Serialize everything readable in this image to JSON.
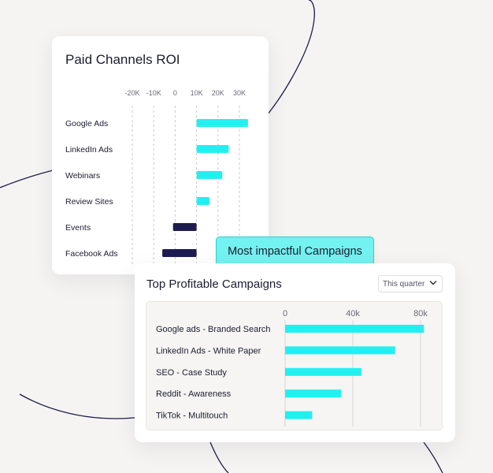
{
  "colors": {
    "positive": "#22f0f0",
    "negative": "#1d1b4f",
    "line": "#1d1b4f"
  },
  "roi_card": {
    "title": "Paid Channels ROI"
  },
  "badge": {
    "label": "Most impactful Campaigns"
  },
  "campaigns_card": {
    "title": "Top Profitable Campaigns",
    "period_selector": {
      "selected": "This quarter",
      "icon": "chevron-down-icon"
    }
  },
  "chart_data": [
    {
      "type": "bar",
      "orientation": "horizontal",
      "title": "Paid Channels ROI",
      "categories": [
        "Google Ads",
        "LinkedIn Ads",
        "Webinars",
        "Review Sites",
        "Events",
        "Facebook Ads"
      ],
      "values": [
        24000,
        15000,
        12000,
        6000,
        -11000,
        -16000
      ],
      "x_ticks": [
        "-20K",
        "-10K",
        "0",
        "10K",
        "20K",
        "30K"
      ],
      "x_tick_values": [
        -20000,
        -10000,
        0,
        10000,
        20000,
        30000
      ],
      "xlim": [
        -20000,
        30000
      ],
      "bar_start": 10000,
      "grid": "dashed vertical"
    },
    {
      "type": "bar",
      "orientation": "horizontal",
      "title": "Top Profitable Campaigns",
      "categories": [
        "Google ads - Branded Search",
        "LinkedIn Ads - White Paper",
        "SEO - Case Study",
        "Reddit - Awareness",
        "TikTok - Multitouch"
      ],
      "values": [
        82000,
        65000,
        45000,
        33000,
        16000
      ],
      "x_ticks": [
        "0",
        "40k",
        "80k"
      ],
      "x_tick_values": [
        0,
        40000,
        80000
      ],
      "xlim": [
        0,
        80000
      ],
      "grid": "solid vertical"
    }
  ]
}
